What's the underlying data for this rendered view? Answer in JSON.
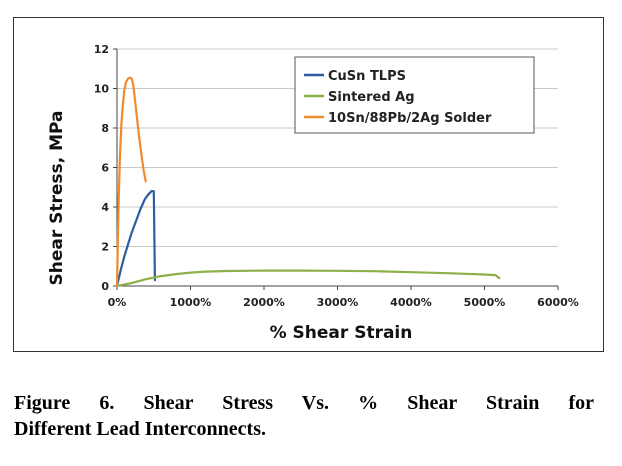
{
  "caption": {
    "line1": "Figure 6.  Shear Stress Vs. % Shear Strain for",
    "line2": "Different Lead Interconnects."
  },
  "chart_data": {
    "type": "line",
    "title": "",
    "xlabel": "% Shear Strain",
    "ylabel": "Shear Stress, MPa",
    "xlim": [
      0,
      6000
    ],
    "ylim": [
      0,
      12
    ],
    "x_ticks": [
      0,
      1000,
      2000,
      3000,
      4000,
      5000,
      6000
    ],
    "x_tick_labels": [
      "0%",
      "1000%",
      "2000%",
      "3000%",
      "4000%",
      "5000%",
      "6000%"
    ],
    "y_ticks": [
      0,
      2,
      4,
      6,
      8,
      10,
      12
    ],
    "y_tick_labels": [
      "0",
      "2",
      "4",
      "6",
      "8",
      "10",
      "12"
    ],
    "grid": "horizontal",
    "legend_position": "top-right",
    "series": [
      {
        "name": "CuSn TLPS",
        "color": "#2e5d9f",
        "x": [
          0,
          50,
          100,
          150,
          200,
          260,
          320,
          380,
          430,
          470,
          500,
          510,
          515
        ],
        "y": [
          0,
          0.8,
          1.5,
          2.1,
          2.7,
          3.3,
          3.9,
          4.4,
          4.65,
          4.8,
          4.8,
          2.0,
          0.3
        ]
      },
      {
        "name": "Sintered Ag",
        "color": "#8db04a",
        "x": [
          0,
          200,
          400,
          600,
          800,
          1000,
          1200,
          1500,
          2000,
          2500,
          3000,
          3500,
          4000,
          4500,
          5000,
          5150,
          5200
        ],
        "y": [
          0,
          0.15,
          0.35,
          0.5,
          0.6,
          0.68,
          0.73,
          0.76,
          0.78,
          0.78,
          0.77,
          0.75,
          0.7,
          0.65,
          0.58,
          0.55,
          0.4
        ]
      },
      {
        "name": "10Sn/88Pb/2Ag Solder",
        "color": "#f08a2e",
        "x": [
          0,
          20,
          40,
          60,
          80,
          100,
          120,
          150,
          180,
          200,
          220,
          240,
          270,
          300,
          330,
          360,
          390
        ],
        "y": [
          0,
          4.0,
          6.5,
          8.2,
          9.2,
          9.9,
          10.3,
          10.5,
          10.55,
          10.5,
          10.2,
          9.6,
          8.6,
          7.6,
          6.7,
          5.9,
          5.3
        ]
      }
    ]
  }
}
